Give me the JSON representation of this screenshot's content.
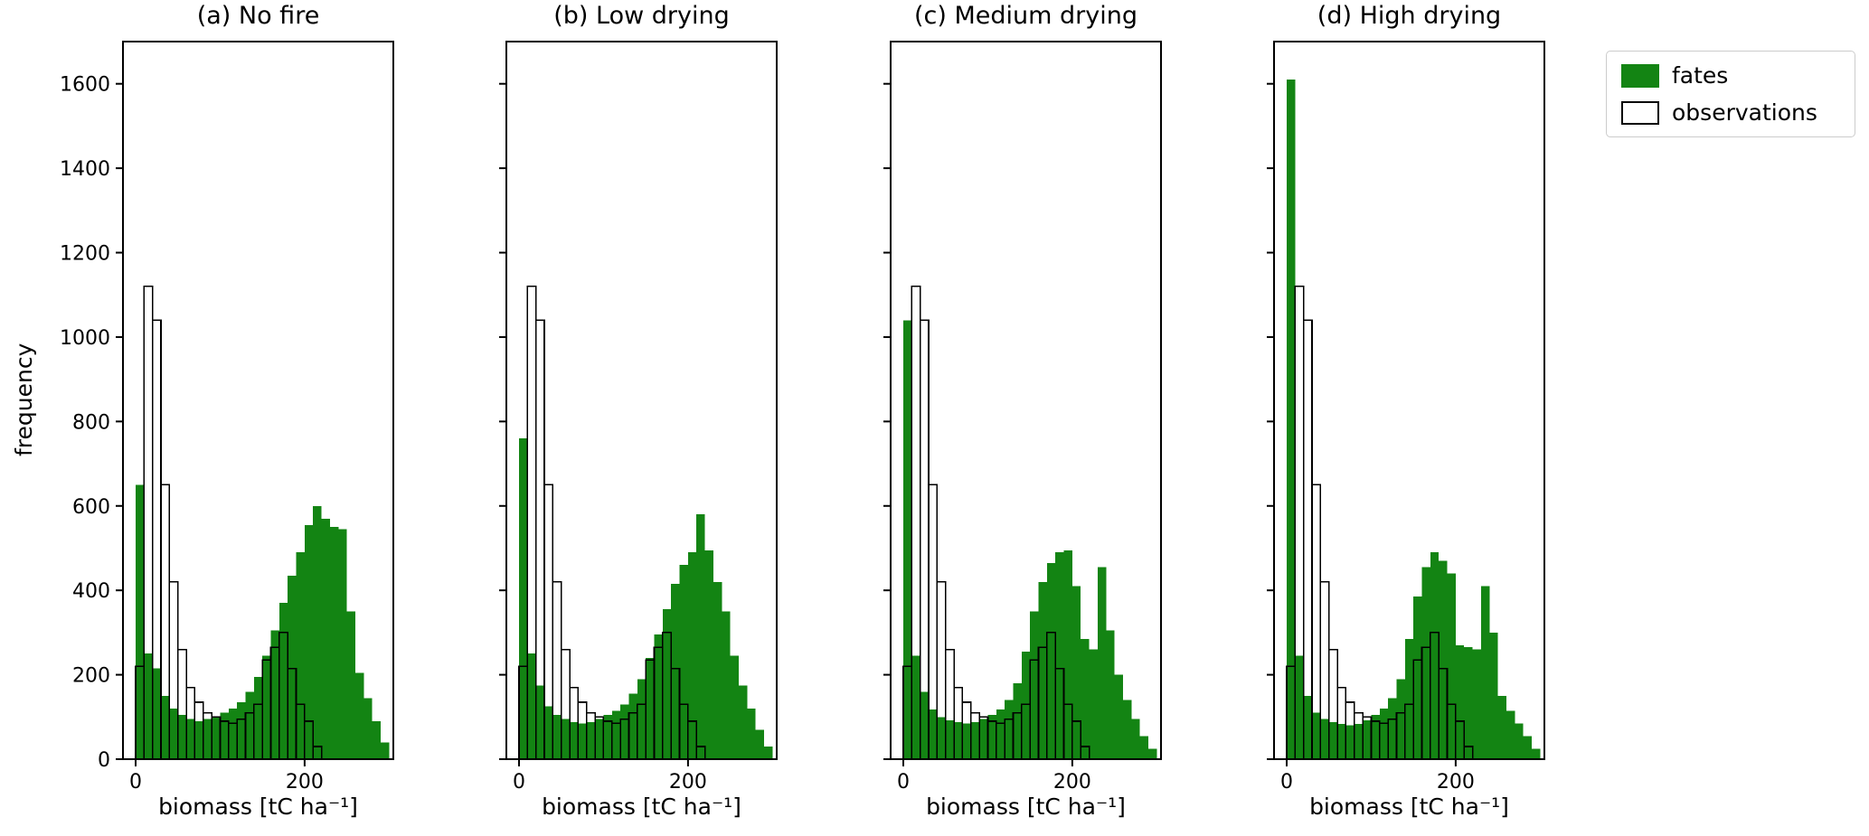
{
  "figure": {
    "background": "#ffffff",
    "ylabel": "frequency",
    "text_color": "#000000"
  },
  "legend": {
    "position": "top-right-outside",
    "items": [
      {
        "label": "fates",
        "style": "filled",
        "color": "#138413"
      },
      {
        "label": "observations",
        "style": "outline",
        "color": "#000000"
      }
    ]
  },
  "chart_data": [
    {
      "type": "bar",
      "variant": "histogram",
      "title": "(a) No fire",
      "xlabel": "biomass [tC ha⁻¹]",
      "ylabel": "frequency",
      "xlim": [
        -15,
        305
      ],
      "ylim": [
        0,
        1700
      ],
      "xticks": [
        0,
        200
      ],
      "yticks": [
        0,
        200,
        400,
        600,
        800,
        1000,
        1200,
        1400,
        1600
      ],
      "ytick_labels_visible": true,
      "grid": false,
      "bin_start": 0,
      "bin_width": 10,
      "series": [
        {
          "name": "fates",
          "style": "filled",
          "color": "#138413",
          "values": [
            650,
            250,
            215,
            150,
            120,
            105,
            95,
            90,
            95,
            100,
            110,
            120,
            135,
            160,
            195,
            245,
            305,
            370,
            435,
            490,
            555,
            600,
            570,
            550,
            545,
            350,
            205,
            145,
            90,
            40
          ]
        },
        {
          "name": "observations",
          "style": "outline",
          "color": "#000000",
          "values": [
            220,
            1120,
            1040,
            650,
            420,
            260,
            170,
            135,
            110,
            100,
            90,
            85,
            95,
            110,
            130,
            235,
            265,
            300,
            215,
            130,
            90,
            30
          ]
        }
      ]
    },
    {
      "type": "bar",
      "variant": "histogram",
      "title": "(b) Low drying",
      "xlabel": "biomass [tC ha⁻¹]",
      "ylabel": "frequency",
      "xlim": [
        -15,
        305
      ],
      "ylim": [
        0,
        1700
      ],
      "xticks": [
        0,
        200
      ],
      "yticks": [
        0,
        200,
        400,
        600,
        800,
        1000,
        1200,
        1400,
        1600
      ],
      "ytick_labels_visible": false,
      "grid": false,
      "bin_start": 0,
      "bin_width": 10,
      "series": [
        {
          "name": "fates",
          "style": "filled",
          "color": "#138413",
          "values": [
            760,
            250,
            175,
            125,
            105,
            95,
            88,
            85,
            88,
            95,
            105,
            115,
            130,
            155,
            190,
            240,
            295,
            355,
            415,
            460,
            490,
            580,
            495,
            420,
            350,
            245,
            175,
            120,
            70,
            30
          ]
        },
        {
          "name": "observations",
          "style": "outline",
          "color": "#000000",
          "values": [
            220,
            1120,
            1040,
            650,
            420,
            260,
            170,
            135,
            110,
            100,
            90,
            85,
            95,
            110,
            130,
            235,
            265,
            300,
            215,
            130,
            90,
            30
          ]
        }
      ]
    },
    {
      "type": "bar",
      "variant": "histogram",
      "title": "(c) Medium drying",
      "xlabel": "biomass [tC ha⁻¹]",
      "ylabel": "frequency",
      "xlim": [
        -15,
        305
      ],
      "ylim": [
        0,
        1700
      ],
      "xticks": [
        0,
        200
      ],
      "yticks": [
        0,
        200,
        400,
        600,
        800,
        1000,
        1200,
        1400,
        1600
      ],
      "ytick_labels_visible": false,
      "grid": false,
      "bin_start": 0,
      "bin_width": 10,
      "series": [
        {
          "name": "fates",
          "style": "filled",
          "color": "#138413",
          "values": [
            1040,
            245,
            160,
            118,
            100,
            92,
            88,
            85,
            88,
            95,
            105,
            118,
            140,
            180,
            255,
            350,
            420,
            465,
            490,
            495,
            410,
            285,
            260,
            455,
            305,
            200,
            140,
            95,
            55,
            25
          ]
        },
        {
          "name": "observations",
          "style": "outline",
          "color": "#000000",
          "values": [
            220,
            1120,
            1040,
            650,
            420,
            260,
            170,
            135,
            110,
            100,
            90,
            85,
            95,
            110,
            130,
            235,
            265,
            300,
            215,
            130,
            90,
            30
          ]
        }
      ]
    },
    {
      "type": "bar",
      "variant": "histogram",
      "title": "(d) High drying",
      "xlabel": "biomass [tC ha⁻¹]",
      "ylabel": "frequency",
      "xlim": [
        -15,
        305
      ],
      "ylim": [
        0,
        1700
      ],
      "xticks": [
        0,
        200
      ],
      "yticks": [
        0,
        200,
        400,
        600,
        800,
        1000,
        1200,
        1400,
        1600
      ],
      "ytick_labels_visible": false,
      "grid": false,
      "bin_start": 0,
      "bin_width": 10,
      "series": [
        {
          "name": "fates",
          "style": "filled",
          "color": "#138413",
          "values": [
            1610,
            245,
            150,
            110,
            95,
            88,
            84,
            80,
            84,
            92,
            105,
            120,
            145,
            190,
            285,
            385,
            455,
            490,
            470,
            440,
            270,
            265,
            260,
            410,
            300,
            150,
            115,
            85,
            55,
            25
          ]
        },
        {
          "name": "observations",
          "style": "outline",
          "color": "#000000",
          "values": [
            220,
            1120,
            1040,
            650,
            420,
            260,
            170,
            135,
            110,
            100,
            90,
            85,
            95,
            110,
            130,
            235,
            265,
            300,
            215,
            130,
            90,
            30
          ]
        }
      ]
    }
  ]
}
